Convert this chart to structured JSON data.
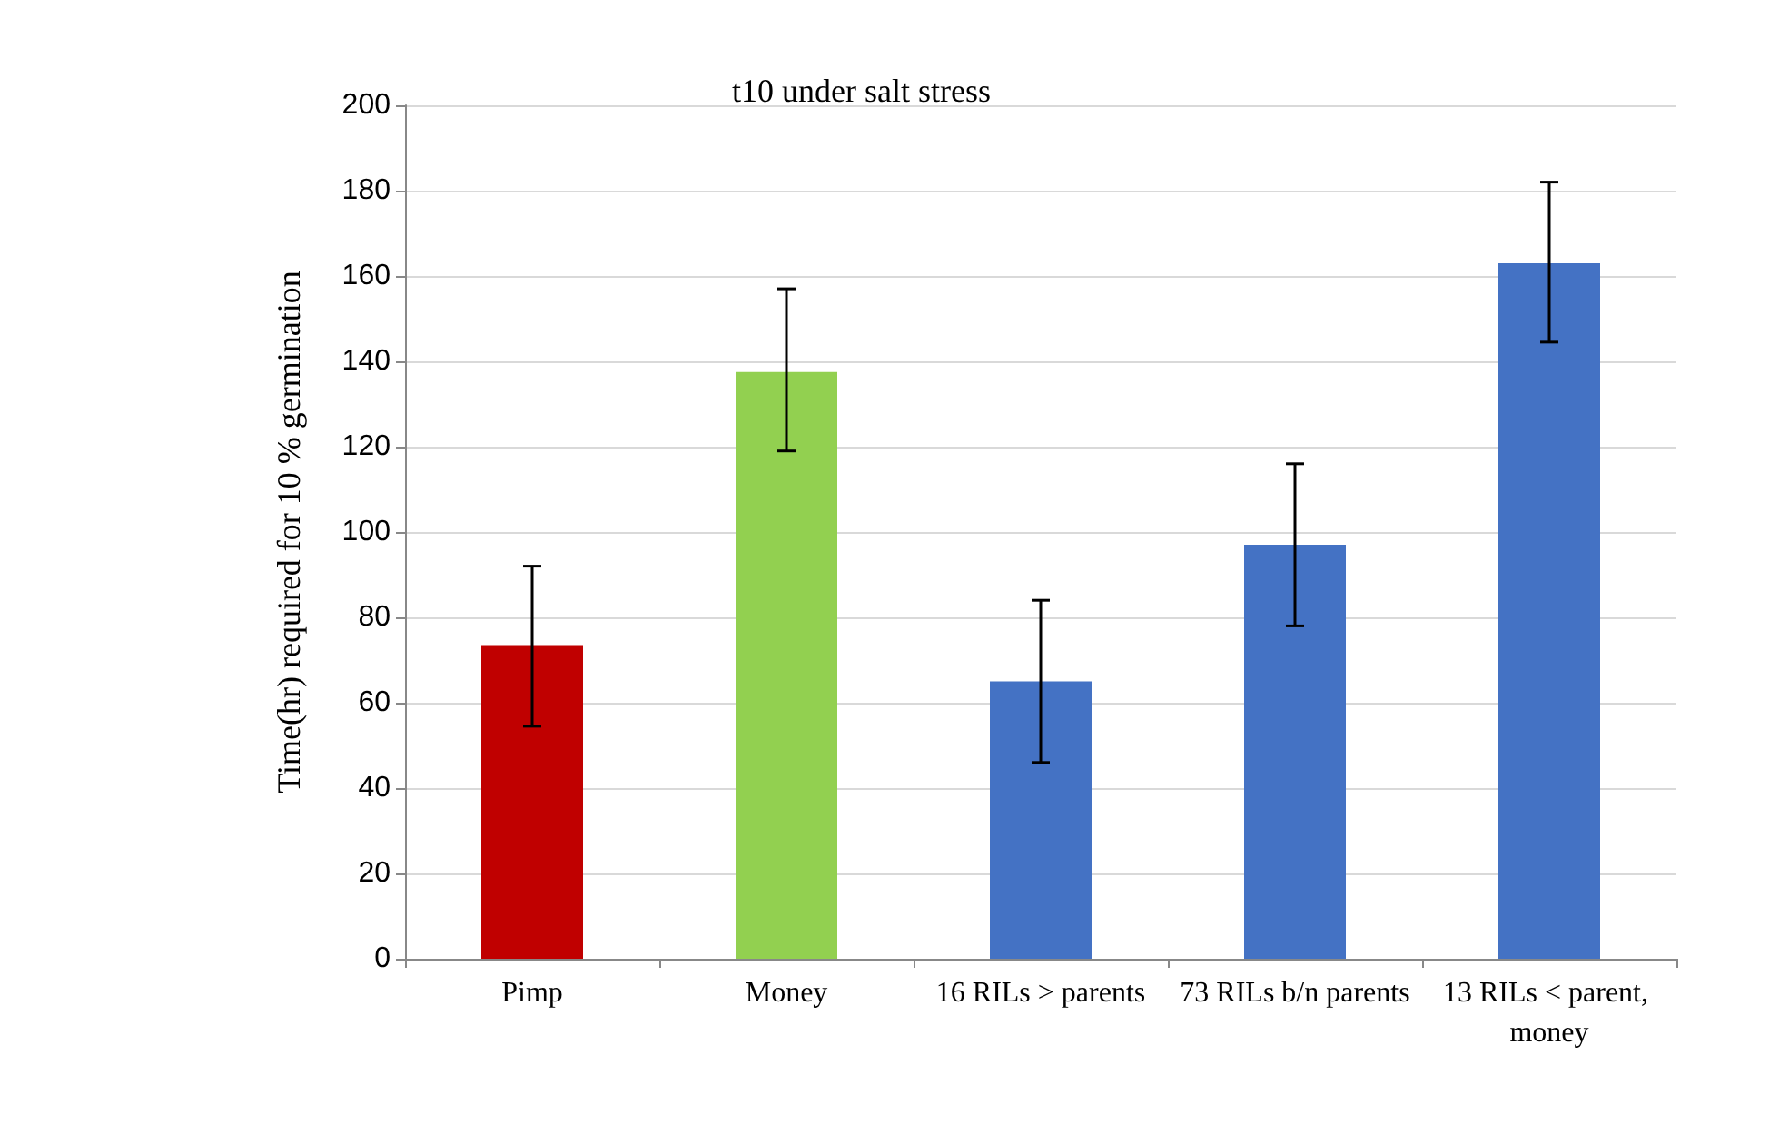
{
  "chart_data": {
    "type": "bar",
    "title": "t10 under salt stress",
    "ylabel": "Time(hr) required for 10 % germination",
    "categories": [
      "Pimp",
      "Money",
      "16 RILs > parents",
      "73 RILs b/n parents",
      "13 RILs < parent, money"
    ],
    "values": [
      73.5,
      137.5,
      65,
      97,
      163
    ],
    "colors": [
      "#c00000",
      "#92d050",
      "#4472c4",
      "#4472c4",
      "#4472c4"
    ],
    "errors": [
      [
        54.5,
        92
      ],
      [
        119,
        157
      ],
      [
        46,
        84
      ],
      [
        78,
        116
      ],
      [
        144.5,
        182
      ]
    ],
    "ylim": [
      0,
      200
    ],
    "yticks": [
      0,
      20,
      40,
      60,
      80,
      100,
      120,
      140,
      160,
      180,
      200
    ],
    "grid": "y"
  }
}
